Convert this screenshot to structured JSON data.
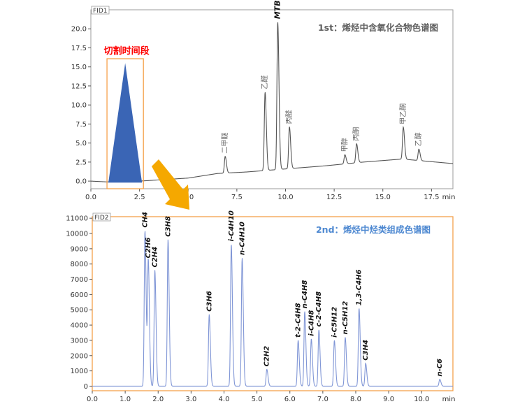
{
  "chart_data": [
    {
      "type": "line",
      "detector_label": "FID1",
      "title": "1st：烯烃中含氧化合物色谱图",
      "xlabel": "min",
      "xlim": [
        0,
        18.6
      ],
      "ylim": [
        -1,
        22.5
      ],
      "x_ticks": [
        "0.0",
        "2.5",
        "5.0",
        "7.5",
        "10.0",
        "12.5",
        "15.0",
        "17.5"
      ],
      "y_ticks": [
        "0.0",
        "2.5",
        "5.0",
        "7.5",
        "10.0",
        "12.5",
        "15.0",
        "17.5",
        "20.0"
      ],
      "baseline": [
        [
          0,
          0.0
        ],
        [
          0.8,
          -0.1
        ],
        [
          2.5,
          0.0
        ],
        [
          5.0,
          0.4
        ],
        [
          6.5,
          1.0
        ],
        [
          8.0,
          1.2
        ],
        [
          10.5,
          1.7
        ],
        [
          12.0,
          2.0
        ],
        [
          14.0,
          2.5
        ],
        [
          16.0,
          2.9
        ],
        [
          18.6,
          2.3
        ]
      ],
      "peaks": [
        {
          "rt": 6.9,
          "height": 2.2,
          "label": "二甲醚",
          "bold": false
        },
        {
          "rt": 8.95,
          "height": 10.3,
          "label": "乙醛",
          "bold": false
        },
        {
          "rt": 9.6,
          "height": 19.4,
          "label": "MTBE",
          "bold": true
        },
        {
          "rt": 10.2,
          "height": 5.5,
          "label": "丙醛",
          "bold": false
        },
        {
          "rt": 13.05,
          "height": 1.2,
          "label": "甲醇",
          "bold": false
        },
        {
          "rt": 13.65,
          "height": 2.5,
          "label": "丙酮",
          "bold": false
        },
        {
          "rt": 16.05,
          "height": 4.2,
          "label": "甲乙酮",
          "bold": false
        },
        {
          "rt": 16.85,
          "height": 1.5,
          "label": "乙醇",
          "bold": false
        }
      ],
      "cut_window": {
        "label": "切割时间段",
        "x_range": [
          0.9,
          2.7
        ],
        "apex_value": 15.5
      }
    },
    {
      "type": "line",
      "detector_label": "FID2",
      "title": "2nd：烯烃中烃类组成色谱图",
      "xlabel": "min",
      "xlim": [
        0,
        10.95
      ],
      "ylim": [
        -300,
        11100
      ],
      "x_ticks": [
        "0.0",
        "1.0",
        "2.0",
        "3.0",
        "4.0",
        "5.0",
        "6.0",
        "7.0",
        "8.0",
        "9.0",
        "10.0"
      ],
      "y_ticks": [
        "0",
        "1000",
        "2000",
        "3000",
        "4000",
        "5000",
        "6000",
        "7000",
        "8000",
        "9000",
        "10000",
        "11000"
      ],
      "peaks": [
        {
          "rt": 1.6,
          "height": 10200,
          "label": "CH4"
        },
        {
          "rt": 1.7,
          "height": 8200,
          "label": "C2H6"
        },
        {
          "rt": 1.9,
          "height": 7600,
          "label": "C2H4"
        },
        {
          "rt": 2.3,
          "height": 9600,
          "label": "C3H8"
        },
        {
          "rt": 3.55,
          "height": 4700,
          "label": "C3H6"
        },
        {
          "rt": 4.22,
          "height": 9300,
          "label": "i-C4H10"
        },
        {
          "rt": 4.55,
          "height": 8400,
          "label": "n-C4H10"
        },
        {
          "rt": 5.3,
          "height": 1100,
          "label": "C2H2"
        },
        {
          "rt": 6.25,
          "height": 3000,
          "label": "t-2-C4H8"
        },
        {
          "rt": 6.45,
          "height": 4900,
          "label": "n-C4H8"
        },
        {
          "rt": 6.65,
          "height": 3100,
          "label": "i-C4H8"
        },
        {
          "rt": 6.88,
          "height": 3700,
          "label": "c-2-C4H8"
        },
        {
          "rt": 7.35,
          "height": 3000,
          "label": "i-C5H12"
        },
        {
          "rt": 7.68,
          "height": 3200,
          "label": "n-C5H12"
        },
        {
          "rt": 8.1,
          "height": 5100,
          "label": "1,3-C4H6"
        },
        {
          "rt": 8.3,
          "height": 1500,
          "label": "C3H4"
        },
        {
          "rt": 10.55,
          "height": 450,
          "label": "n-C6"
        }
      ]
    }
  ],
  "colors": {
    "trace1": "#555555",
    "trace2": "#8096d6",
    "cut_fill": "#3a65b5",
    "cut_label": "#ff0000",
    "frame": "#9b9b9b",
    "highlight_box": "#f5a04a",
    "arrow": "#f5a800",
    "title1": "#606060",
    "title2": "#4d88d1"
  }
}
